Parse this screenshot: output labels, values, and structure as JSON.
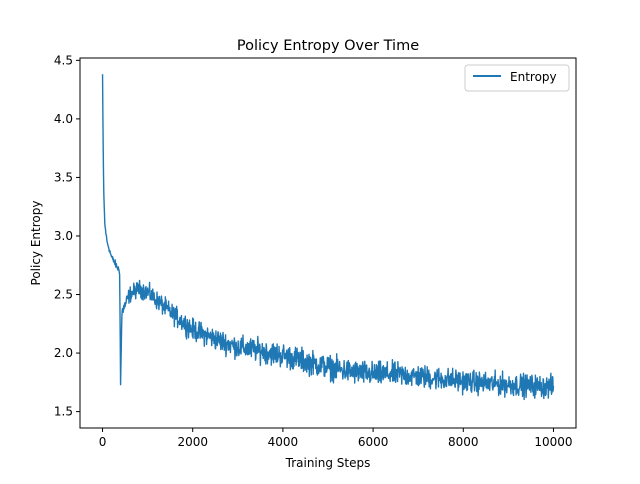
{
  "chart_data": {
    "type": "line",
    "title": "Policy Entropy Over Time",
    "xlabel": "Training Steps",
    "ylabel": "Policy Entropy",
    "xlim": [
      -500,
      10500
    ],
    "ylim": [
      1.36,
      4.52
    ],
    "x_ticks": [
      0,
      2000,
      4000,
      6000,
      8000,
      10000
    ],
    "x_tick_labels": [
      "0",
      "2000",
      "4000",
      "6000",
      "8000",
      "10000"
    ],
    "y_ticks": [
      1.5,
      2.0,
      2.5,
      3.0,
      3.5,
      4.0,
      4.5
    ],
    "y_tick_labels": [
      "1.5",
      "2.0",
      "2.5",
      "3.0",
      "3.5",
      "4.0",
      "4.5"
    ],
    "grid": false,
    "legend": {
      "position": "top-right",
      "entries": [
        "Entropy"
      ]
    },
    "series": [
      {
        "name": "Entropy",
        "color": "#1f77b4",
        "x_range": [
          0,
          10000
        ],
        "trend": [
          [
            0,
            4.38
          ],
          [
            10,
            3.9
          ],
          [
            25,
            3.4
          ],
          [
            50,
            3.1
          ],
          [
            100,
            2.95
          ],
          [
            200,
            2.82
          ],
          [
            300,
            2.75
          ],
          [
            380,
            2.7
          ],
          [
            400,
            1.73
          ],
          [
            430,
            2.35
          ],
          [
            600,
            2.5
          ],
          [
            800,
            2.55
          ],
          [
            1000,
            2.52
          ],
          [
            1500,
            2.35
          ],
          [
            2000,
            2.2
          ],
          [
            2500,
            2.12
          ],
          [
            3000,
            2.05
          ],
          [
            3500,
            2.02
          ],
          [
            4000,
            1.98
          ],
          [
            4500,
            1.93
          ],
          [
            5000,
            1.88
          ],
          [
            5500,
            1.84
          ],
          [
            6000,
            1.82
          ],
          [
            6500,
            1.82
          ],
          [
            7000,
            1.8
          ],
          [
            7500,
            1.78
          ],
          [
            8000,
            1.76
          ],
          [
            8500,
            1.74
          ],
          [
            9000,
            1.73
          ],
          [
            9500,
            1.72
          ],
          [
            10000,
            1.71
          ]
        ],
        "noise_amplitude": [
          [
            0,
            0.02
          ],
          [
            380,
            0.05
          ],
          [
            600,
            0.1
          ],
          [
            2000,
            0.13
          ],
          [
            4000,
            0.15
          ],
          [
            6000,
            0.15
          ],
          [
            8000,
            0.14
          ],
          [
            10000,
            0.14
          ]
        ]
      }
    ]
  }
}
